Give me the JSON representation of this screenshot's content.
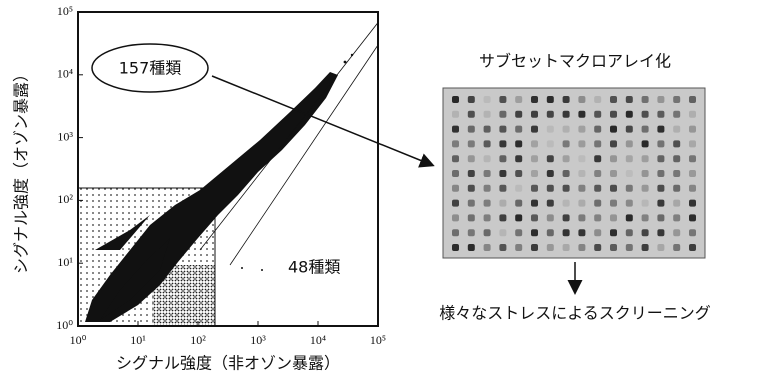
{
  "chart_data": {
    "type": "scatter",
    "xscale": "log",
    "yscale": "log",
    "xlim": [
      1,
      100000
    ],
    "ylim": [
      1,
      100000
    ],
    "xticks": [
      {
        "value": 1,
        "label": "10⁰"
      },
      {
        "value": 10,
        "label": "10¹"
      },
      {
        "value": 100,
        "label": "10²"
      },
      {
        "value": 1000,
        "label": "10³"
      },
      {
        "value": 10000,
        "label": "10⁴"
      },
      {
        "value": 100000,
        "label": "10⁵"
      }
    ],
    "yticks": [
      {
        "value": 1,
        "label": "10⁰"
      },
      {
        "value": 10,
        "label": "10¹"
      },
      {
        "value": 100,
        "label": "10²"
      },
      {
        "value": 1000,
        "label": "10³"
      },
      {
        "value": 10000,
        "label": "10⁴"
      },
      {
        "value": 100000,
        "label": "10⁵"
      }
    ],
    "x_label": "シグナル強度（非オゾン暴露）",
    "y_label": "シグナル強度（オゾン暴露）",
    "annotations": [
      "157種類",
      "48種類"
    ]
  },
  "macroarray": {
    "title": "サブセットマクロアレイ化",
    "caption": "様々なストレスによるスクリーニング"
  }
}
